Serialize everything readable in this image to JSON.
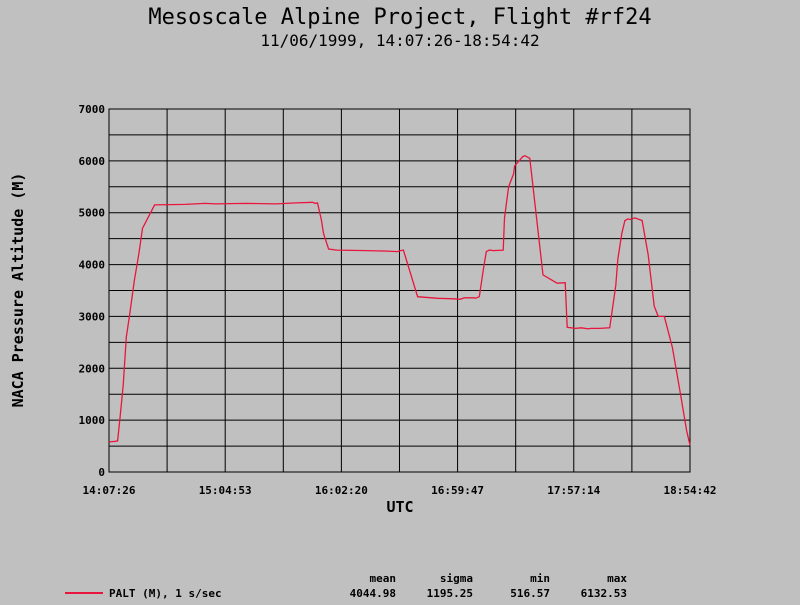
{
  "header": {
    "title": "Mesoscale Alpine Project, Flight #rf24",
    "subtitle": "11/06/1999, 14:07:26-18:54:42"
  },
  "chart_data": {
    "type": "line",
    "xlabel": "UTC",
    "ylabel": "NACA Pressure Altitude (M)",
    "ylim": [
      0,
      7000
    ],
    "yticks": [
      0,
      1000,
      2000,
      3000,
      4000,
      5000,
      6000,
      7000
    ],
    "xlim": [
      "14:07:26",
      "18:54:42"
    ],
    "xticks": [
      "14:07:26",
      "15:04:53",
      "16:02:20",
      "16:59:47",
      "17:57:14",
      "18:54:42"
    ],
    "grid": true,
    "line_color": "#e8163c",
    "series": [
      {
        "name": "PALT (M), 1 s/sec",
        "x": [
          "14:07:26",
          "14:10:20",
          "14:11:40",
          "14:13:00",
          "14:14:30",
          "14:16:00",
          "14:17:30",
          "14:20:00",
          "14:22:10",
          "14:24:00",
          "14:30:00",
          "14:45:00",
          "14:55:00",
          "15:00:00",
          "15:15:00",
          "15:30:00",
          "15:40:00",
          "15:48:00",
          "15:49:30",
          "15:50:30",
          "15:52:30",
          "15:53:30",
          "15:56:00",
          "16:00:00",
          "16:15:00",
          "16:25:00",
          "16:30:00",
          "16:31:30",
          "16:33:00",
          "16:40:00",
          "16:50:00",
          "16:58:00",
          "17:01:00",
          "17:02:30",
          "17:03:00",
          "17:08:00",
          "17:08:30",
          "17:10:30",
          "17:12:30",
          "17:14:00",
          "17:15:30",
          "17:17:30",
          "17:22:20",
          "17:23:00",
          "17:25:00",
          "17:27:30",
          "17:28:00",
          "17:32:00",
          "17:33:00",
          "17:35:30",
          "17:42:00",
          "17:49:00",
          "17:53:00",
          "17:54:00",
          "17:58:00",
          "18:01:00",
          "18:04:30",
          "18:05:30",
          "18:10:00",
          "18:15:00",
          "18:18:00",
          "18:19:00",
          "18:21:00",
          "18:22:30",
          "18:24:00",
          "18:25:00",
          "18:26:00",
          "18:27:30",
          "18:31:00",
          "18:34:00",
          "18:37:00",
          "18:39:00",
          "18:42:00",
          "18:46:00",
          "18:50:00",
          "18:53:00",
          "18:54:42"
        ],
        "values": [
          580,
          590,
          600,
          1100,
          1700,
          2600,
          3000,
          3700,
          4200,
          4700,
          5150,
          5160,
          5180,
          5170,
          5180,
          5170,
          5190,
          5200,
          5180,
          5190,
          4850,
          4600,
          4300,
          4280,
          4270,
          4260,
          4250,
          4270,
          4280,
          3380,
          3350,
          3340,
          3330,
          3350,
          3360,
          3360,
          3350,
          3380,
          3900,
          4250,
          4280,
          4270,
          4280,
          4900,
          5500,
          5750,
          5900,
          6080,
          6100,
          6050,
          3800,
          3640,
          3650,
          2790,
          2770,
          2780,
          2760,
          2770,
          2770,
          2780,
          3600,
          4100,
          4600,
          4850,
          4880,
          4870,
          4880,
          4900,
          4850,
          4200,
          3200,
          3000,
          3000,
          2400,
          1500,
          800,
          516.57
        ]
      }
    ],
    "legend": {
      "label": "PALT (M), 1 s/sec",
      "headers": [
        "mean",
        "sigma",
        "min",
        "max"
      ],
      "values": [
        "4044.98",
        "1195.25",
        "516.57",
        "6132.53"
      ]
    }
  }
}
